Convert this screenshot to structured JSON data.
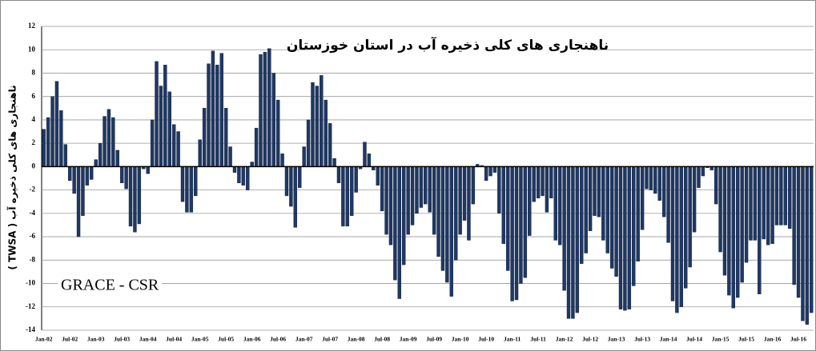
{
  "chart_data": {
    "type": "bar",
    "title": "ناهنجاری های کلی ذخیره آب در استان خوزستان",
    "y_label": "ناهنجاری های کلی ذخیره آب ( TWSA )",
    "annotation": "GRACE - CSR",
    "color": "#1f3864",
    "ylim": [
      -14,
      12
    ],
    "yticks": [
      -14,
      -12,
      -10,
      -8,
      -6,
      -4,
      -2,
      0,
      2,
      4,
      6,
      8,
      10,
      12
    ],
    "grid": true,
    "categories": [
      "Jan-02",
      null,
      null,
      null,
      null,
      null,
      "Jul-02",
      null,
      null,
      null,
      null,
      null,
      "Jan-03",
      null,
      null,
      null,
      null,
      null,
      "Jul-03",
      null,
      null,
      null,
      null,
      null,
      "Jan-04",
      null,
      null,
      null,
      null,
      null,
      "Jul-04",
      null,
      null,
      null,
      null,
      null,
      "Jan-05",
      null,
      null,
      null,
      null,
      null,
      "Jul-05",
      null,
      null,
      null,
      null,
      null,
      "Jan-06",
      null,
      null,
      null,
      null,
      null,
      "Jul-06",
      null,
      null,
      null,
      null,
      null,
      "Jan-07",
      null,
      null,
      null,
      null,
      null,
      "Jul-07",
      null,
      null,
      null,
      null,
      null,
      "Jan-08",
      null,
      null,
      null,
      null,
      null,
      "Jul-08",
      null,
      null,
      null,
      null,
      null,
      "Jan-09",
      null,
      null,
      null,
      null,
      null,
      "Jul-09",
      null,
      null,
      null,
      null,
      null,
      "Jan-10",
      null,
      null,
      null,
      null,
      null,
      "Jul-10",
      null,
      null,
      null,
      null,
      null,
      "Jan-11",
      null,
      null,
      null,
      null,
      null,
      "Jul-11",
      null,
      null,
      null,
      null,
      null,
      "Jan-12",
      null,
      null,
      null,
      null,
      null,
      "Jul-12",
      null,
      null,
      null,
      null,
      null,
      "Jan-13",
      null,
      null,
      null,
      null,
      null,
      "Jul-13",
      null,
      null,
      null,
      null,
      null,
      "Jan-14",
      null,
      null,
      null,
      null,
      null,
      "Jul-14",
      null,
      null,
      null,
      null,
      null,
      "Jan-15",
      null,
      null,
      null,
      null,
      null,
      "Jul-15",
      null,
      null,
      null,
      null,
      null,
      "Jan-16",
      null,
      null,
      null,
      null,
      null,
      "Jul-16",
      null,
      null,
      null
    ],
    "values": [
      3.2,
      4.2,
      6.0,
      7.3,
      4.8,
      1.9,
      -1.2,
      -2.3,
      -6.0,
      -4.2,
      -1.6,
      -1.1,
      0.6,
      2.0,
      4.3,
      4.9,
      4.2,
      1.4,
      -1.4,
      -1.9,
      -5.1,
      -5.6,
      -4.9,
      -0.2,
      -0.6,
      4.0,
      9.0,
      6.9,
      8.7,
      6.4,
      3.6,
      3.0,
      -3.0,
      -3.9,
      -3.9,
      -2.5,
      2.3,
      5.0,
      8.8,
      9.9,
      8.7,
      9.7,
      5.0,
      1.7,
      -0.5,
      -1.4,
      -1.6,
      -2.0,
      0.4,
      3.3,
      9.6,
      9.8,
      10.1,
      8.0,
      5.7,
      1.1,
      -2.5,
      -3.4,
      -5.2,
      -1.8,
      1.7,
      4.0,
      7.2,
      6.9,
      7.8,
      5.7,
      3.7,
      0.7,
      -1.4,
      -5.1,
      -5.1,
      -4.2,
      -2.2,
      -0.2,
      2.1,
      1.1,
      -0.3,
      -1.6,
      -3.8,
      -5.8,
      -6.7,
      -9.7,
      -11.3,
      -8.4,
      -5.8,
      -5.0,
      -4.0,
      -3.5,
      -3.2,
      -3.9,
      -5.8,
      -7.7,
      -8.9,
      -9.9,
      -11.1,
      -8.0,
      -5.8,
      -4.6,
      -6.3,
      -3.2,
      0.2,
      0.1,
      -1.2,
      -0.8,
      -0.5,
      -4.0,
      -6.6,
      -8.9,
      -11.5,
      -11.4,
      -10.0,
      -9.5,
      -5.9,
      -3.0,
      -2.7,
      -2.5,
      -3.9,
      -2.7,
      -6.3,
      -6.7,
      -10.6,
      -13.0,
      -13.0,
      -12.5,
      -8.3,
      -7.4,
      -5.5,
      -4.2,
      -4.3,
      -6.3,
      -7.4,
      -8.7,
      -9.4,
      -12.2,
      -12.3,
      -12.2,
      -10.2,
      -8.1,
      -5.4,
      -1.9,
      -2.0,
      -2.3,
      -2.9,
      -4.3,
      -6.5,
      -11.5,
      -12.5,
      -12.0,
      -10.4,
      -8.6,
      -5.6,
      -1.8,
      -0.8,
      -0.1,
      -0.3,
      -3.2,
      -7.3,
      -9.3,
      -11.0,
      -12.1,
      -11.2,
      -9.9,
      -8.2,
      -6.3,
      -6.3,
      -10.9,
      -6.2,
      -6.7,
      -6.6,
      -5.0,
      -5.0,
      -5.0,
      -5.3,
      -10.1,
      -11.2,
      -13.2,
      -13.5,
      -12.5
    ]
  }
}
